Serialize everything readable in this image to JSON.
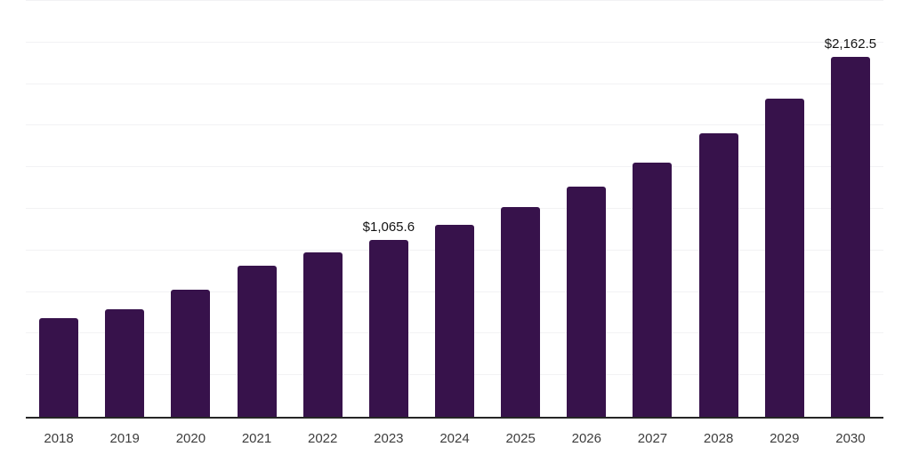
{
  "chart_data": {
    "type": "bar",
    "title": "",
    "xlabel": "",
    "ylabel": "",
    "categories": [
      "2018",
      "2019",
      "2020",
      "2021",
      "2022",
      "2023",
      "2024",
      "2025",
      "2026",
      "2027",
      "2028",
      "2029",
      "2030"
    ],
    "values": [
      594,
      646,
      763,
      909,
      986,
      1065.6,
      1154,
      1261,
      1382,
      1528,
      1702,
      1911,
      2162.5
    ],
    "data_labels": [
      "",
      "",
      "",
      "",
      "",
      "$1,065.6",
      "",
      "",
      "",
      "",
      "",
      "",
      "$2,162.5"
    ],
    "ylim": [
      0,
      2500
    ],
    "grid_step": 250,
    "grid": "horizontal",
    "legend": "none",
    "y_axis_labels_visible": false,
    "colors": {
      "bar": "#37124B",
      "gridline": "#f2f2f4",
      "axis_line": "#262626",
      "tick_label": "#3d3d3d",
      "value_label": "#131313",
      "background": "#ffffff"
    }
  }
}
